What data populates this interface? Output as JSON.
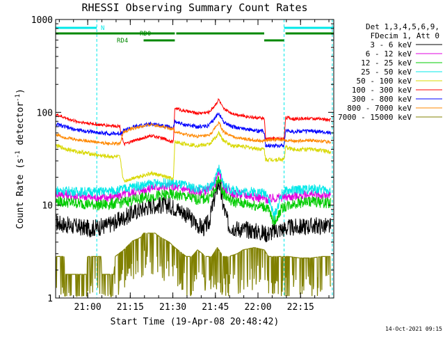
{
  "chart_data": {
    "type": "line",
    "title": "RHESSI Observing Summary Count Rates",
    "xlabel": "Start Time (19-Apr-08 20:48:42)",
    "ylabel_main": "Count Rate (s",
    "ylabel_sup1": "-1",
    "ylabel_mid": " detector",
    "ylabel_sup2": "-1",
    "ylabel_end": ")",
    "x_range_minutes": [
      0,
      98
    ],
    "ylim": [
      1,
      1000
    ],
    "y_scale": "log",
    "x_ticks": [
      {
        "label": "21:00",
        "minute": 11.3
      },
      {
        "label": "21:15",
        "minute": 26.3
      },
      {
        "label": "21:30",
        "minute": 41.3
      },
      {
        "label": "21:45",
        "minute": 56.3
      },
      {
        "label": "22:00",
        "minute": 71.3
      },
      {
        "label": "22:15",
        "minute": 86.3
      }
    ],
    "y_ticks": [
      {
        "label": "1",
        "value": 1
      },
      {
        "label": "10",
        "value": 10
      },
      {
        "label": "100",
        "value": 100
      },
      {
        "label": "1000",
        "value": 1000
      }
    ],
    "legend_header": [
      "Det 1,3,4,5,6,9,",
      "FDecim 1, Att 0"
    ],
    "series": [
      {
        "name": "3 - 6 keV",
        "color": "#000000",
        "x": [
          0,
          5,
          12,
          18,
          22,
          28,
          34,
          40,
          45,
          49,
          52,
          54,
          56,
          57.5,
          59,
          61,
          64,
          70,
          74.5,
          78,
          82,
          86,
          90,
          94,
          97
        ],
        "y": [
          6.5,
          6,
          5.6,
          6,
          6.8,
          8.5,
          10,
          10,
          8.5,
          6.5,
          5.6,
          6.5,
          12,
          18,
          10,
          6,
          5.6,
          5.3,
          4.9,
          5.4,
          5.7,
          5.8,
          6,
          6,
          5.8
        ]
      },
      {
        "name": "6 - 12 keV",
        "color": "#e000e0",
        "x": [
          0,
          8,
          16,
          22,
          28,
          34,
          40,
          45,
          50,
          54,
          56,
          57.5,
          59,
          62,
          66,
          70,
          74.5,
          78,
          84,
          90,
          97
        ],
        "y": [
          13.5,
          12.5,
          12,
          12.5,
          14,
          15.5,
          16,
          15,
          14,
          14.5,
          17,
          23,
          16,
          13.5,
          13,
          12.5,
          11.5,
          12,
          12.5,
          13,
          12.5
        ]
      },
      {
        "name": "12 - 25 keV",
        "color": "#00cc00",
        "x": [
          0,
          8,
          16,
          22,
          28,
          34,
          40,
          45,
          50,
          54,
          56,
          57.5,
          59,
          62,
          66,
          70,
          74.5,
          77,
          80,
          84,
          90,
          97
        ],
        "y": [
          11,
          10.5,
          10,
          10.5,
          11.5,
          12.5,
          13,
          12.5,
          11.5,
          12,
          14,
          20,
          13.5,
          11,
          10.5,
          10,
          9.5,
          6.5,
          9.5,
          10.5,
          11,
          10.5
        ]
      },
      {
        "name": "25 - 50 keV",
        "color": "#00e8e8",
        "x": [
          0,
          8,
          16,
          22,
          28,
          34,
          40,
          45,
          50,
          54,
          56,
          57.5,
          59,
          62,
          66,
          70,
          74.5,
          77,
          80,
          84,
          90,
          97
        ],
        "y": [
          14.5,
          14,
          14,
          14.5,
          16,
          17,
          17.5,
          16.5,
          15,
          15.5,
          18,
          25,
          17,
          14.5,
          14,
          14,
          13.5,
          7.5,
          14,
          14.5,
          15,
          14.5
        ]
      },
      {
        "name": "50 - 100 keV",
        "color": "#d8d800",
        "x": [
          0,
          3,
          7,
          12,
          16,
          19,
          22.6,
          24,
          28,
          34,
          38,
          41.5,
          42,
          45,
          50,
          54,
          56,
          57.5,
          59,
          62,
          66,
          70,
          73.5,
          74,
          78,
          80.5,
          81,
          84,
          90,
          97
        ],
        "y": [
          44,
          41,
          38,
          36,
          34,
          33.5,
          33,
          18,
          20,
          22,
          20.5,
          19,
          48,
          46,
          44,
          45,
          52,
          60,
          50,
          44,
          43,
          41,
          40,
          31,
          31,
          31,
          42,
          40,
          40,
          38
        ]
      },
      {
        "name": "100 - 300 keV",
        "color": "#ff0000",
        "x": [
          0,
          3,
          7,
          12,
          16,
          19,
          22.6,
          24,
          28,
          34,
          38,
          41.5,
          42,
          45,
          50,
          54,
          56,
          57.5,
          59,
          62,
          66,
          70,
          73.5,
          74,
          78,
          80.5,
          81,
          84,
          90,
          97
        ],
        "y": [
          95,
          88,
          80,
          76,
          73,
          72,
          71,
          45,
          50,
          56,
          52,
          48,
          112,
          104,
          98,
          100,
          118,
          138,
          110,
          98,
          92,
          88,
          86,
          52,
          52,
          52,
          88,
          85,
          86,
          83
        ]
      },
      {
        "name": "300 - 800 keV",
        "color": "#0000ff",
        "x": [
          0,
          3,
          7,
          12,
          16,
          19,
          22.6,
          24,
          28,
          34,
          38,
          41.5,
          42,
          45,
          50,
          54,
          56,
          57.5,
          59,
          62,
          66,
          70,
          73.5,
          74,
          78,
          80.5,
          81,
          84,
          90,
          97
        ],
        "y": [
          75,
          70,
          65,
          62,
          60,
          59,
          59,
          64,
          70,
          75,
          72,
          68,
          80,
          74,
          70,
          72,
          85,
          100,
          80,
          70,
          67,
          64,
          62,
          44,
          44,
          44,
          64,
          62,
          63,
          60
        ]
      },
      {
        "name": "800 - 7000 keV",
        "color": "#ff8800",
        "x": [
          0,
          3,
          7,
          12,
          16,
          19,
          22.6,
          24,
          28,
          34,
          38,
          41.5,
          42,
          45,
          50,
          54,
          56,
          57.5,
          59,
          62,
          66,
          70,
          73.5,
          74,
          78,
          80.5,
          81,
          84,
          90,
          97
        ],
        "y": [
          58,
          54,
          51,
          49,
          47,
          46,
          46,
          62,
          68,
          74,
          70,
          66,
          62,
          58,
          55,
          56,
          66,
          78,
          62,
          55,
          52,
          50,
          49,
          50,
          51,
          51,
          50,
          49,
          50,
          48
        ]
      },
      {
        "name": "7000 - 15000 keV",
        "color": "#808000",
        "x": [
          0,
          3,
          3.2,
          11,
          11.2,
          16,
          16.2,
          20.5,
          21,
          24,
          26,
          27,
          30,
          31,
          35,
          37,
          40,
          42,
          46,
          48,
          50,
          53,
          55,
          57,
          59,
          61,
          64,
          66,
          70,
          73.5,
          75,
          78,
          82,
          86,
          90,
          94,
          97
        ],
        "y": [
          2.8,
          2.8,
          1.8,
          1.8,
          2.8,
          2.8,
          1.8,
          1.8,
          2.8,
          3.3,
          3.8,
          4.1,
          4.5,
          5.0,
          5.0,
          4.5,
          4.0,
          3.5,
          2.8,
          2.8,
          3.3,
          2.8,
          2.8,
          3.5,
          2.8,
          2.8,
          3.0,
          3.3,
          3.5,
          3.3,
          2.8,
          2.8,
          2.8,
          2.7,
          2.7,
          2.8,
          2.8
        ]
      }
    ],
    "attenuator_bars": [
      {
        "label": "N",
        "color": "#00e8e8",
        "level": 1,
        "segments": [
          [
            0,
            14.5
          ],
          [
            80.5,
            98
          ]
        ]
      },
      {
        "label": "RD0",
        "color": "#008800",
        "level": 2,
        "segments": [
          [
            0,
            42
          ],
          [
            42.5,
            73.5
          ],
          [
            81,
            98
          ]
        ]
      },
      {
        "label": "RD4",
        "color": "#008800",
        "level": 3,
        "segments": [
          [
            31,
            42
          ],
          [
            73.5,
            80.5
          ]
        ]
      }
    ],
    "vertical_markers_minutes": [
      0,
      14.5,
      80.5,
      97.5
    ],
    "timestamp": "14-Oct-2021 09:15"
  }
}
